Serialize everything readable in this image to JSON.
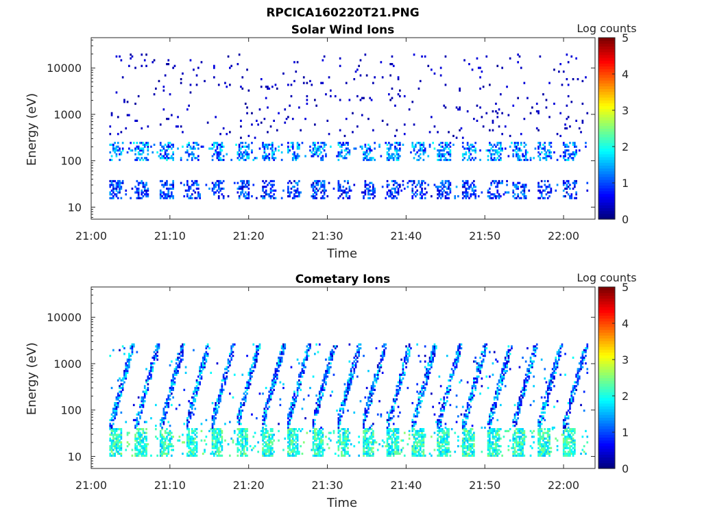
{
  "figure": {
    "title": "RPCICA160220T21.PNG"
  },
  "chart_data": [
    {
      "type": "heatmap",
      "title": "Solar Wind Ions",
      "xlabel": "Time",
      "ylabel": "Energy (eV)",
      "x_ticks": [
        "21:00",
        "21:10",
        "21:20",
        "21:30",
        "21:40",
        "21:50",
        "22:00"
      ],
      "x_range_minutes": [
        0,
        64
      ],
      "y_scale": "log",
      "y_ticks": [
        "10",
        "100",
        "1000",
        "10000"
      ],
      "y_range": [
        5.5,
        45000
      ],
      "colorbar": {
        "label": "Log counts",
        "ticks": [
          "0",
          "1",
          "2",
          "3",
          "4",
          "5"
        ],
        "range": [
          0,
          5
        ],
        "colormap": "jet"
      },
      "data_extent_minutes": [
        2.3,
        63
      ],
      "features": [
        {
          "band": "solar wind",
          "energy_eV": [
            100,
            250
          ],
          "log_counts": [
            0.5,
            2
          ]
        },
        {
          "band": "low energy",
          "energy_eV": [
            15,
            35
          ],
          "log_counts": [
            0.3,
            1.5
          ]
        },
        {
          "band": "sparse noise",
          "energy_eV": [
            300,
            20000
          ],
          "log_counts": [
            0.1,
            0.5
          ]
        }
      ]
    },
    {
      "type": "heatmap",
      "title": "Cometary Ions",
      "xlabel": "Time",
      "ylabel": "Energy (eV)",
      "x_ticks": [
        "21:00",
        "21:10",
        "21:20",
        "21:30",
        "21:40",
        "21:50",
        "22:00"
      ],
      "x_range_minutes": [
        0,
        64
      ],
      "y_scale": "log",
      "y_ticks": [
        "10",
        "100",
        "1000",
        "10000"
      ],
      "y_range": [
        5.5,
        45000
      ],
      "colorbar": {
        "label": "Log counts",
        "ticks": [
          "0",
          "1",
          "2",
          "3",
          "4",
          "5"
        ],
        "range": [
          0,
          5
        ],
        "colormap": "jet"
      },
      "data_extent_minutes": [
        2.3,
        63
      ],
      "sweep_period_minutes": 3.2,
      "features": [
        {
          "band": "cometary core",
          "energy_eV": [
            10,
            40
          ],
          "log_counts": [
            1.5,
            2.6
          ]
        },
        {
          "band": "sweep streak",
          "energy_eV": [
            40,
            2500
          ],
          "log_counts": [
            0.3,
            2
          ]
        }
      ]
    }
  ]
}
